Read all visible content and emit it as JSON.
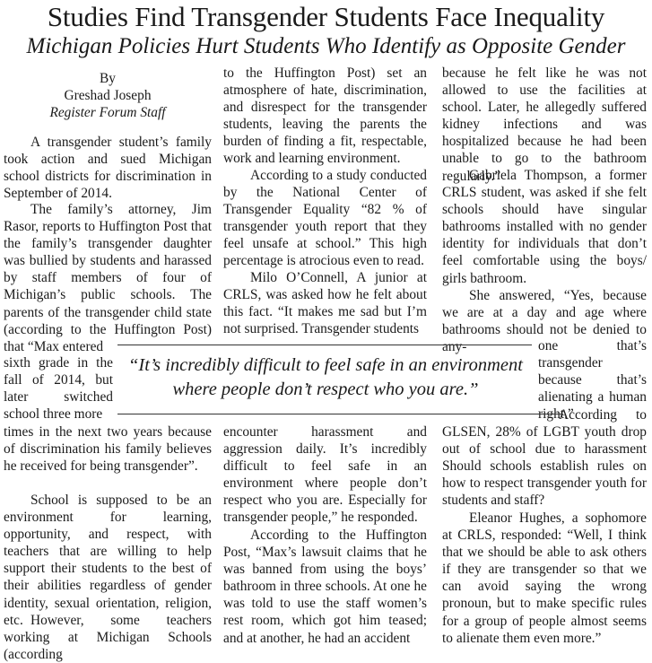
{
  "headline": "Studies Find Transgender Students Face Inequality",
  "subheadline": "Michigan Policies Hurt Students Who Identify as Opposite Gender",
  "byline": {
    "by": "By",
    "author": "Greshad Joseph",
    "staff": "Register Forum Staff"
  },
  "col1": {
    "p1": "A transgender student’s family took action and sued Michigan school districts for discrimination in September of 2014.",
    "p2": "The family’s attorney, Jim Rasor, reports to Huffington Post that the family’s transgender daughter was bullied by students and harassed by staff members of four of Michigan’s public schools. The parents of the transgender child state (according to the Huffington Post) that “Max entered",
    "p2b": "sixth grade in the fall of 2014, but later switched school three more",
    "p2c": "times in the next two years because of discrimination his family believes he received for being transgender”.",
    "p3": "School is supposed to be an environment for learning, opportunity, and respect, with teachers that are willing to help support their students to the best of their abilities regardless of gender identity, sexual orientation, religion, etc.",
    "p4": "However, some teachers working at Michigan Schools (according"
  },
  "col2": {
    "p1": "to the Huffington Post) set an atmosphere of hate, discrimination, and disrespect for the transgender students, leaving the parents the burden of finding a fit, respectable, work and learning environment.",
    "p2": "According to a study conducted by the National Center of Transgender Equality “82 % of transgender youth report that they feel unsafe at school.” This high percentage is atrocious even to read.",
    "p3": "Milo O’Connell, A junior at CRLS, was asked how he felt about this fact. “It makes me sad but I’m not surprised. Transgender students",
    "p4": "encounter harassment and aggression daily. It’s incredibly difficult to feel safe in an environment where people don’t respect who you are. Especially for transgender people,” he responded.",
    "p5": "According to the Huffington Post, “Max’s lawsuit claims that he was banned from using the boys’ bathroom in three schools. At one he was told to use the staff women’s rest room, which got him teased; and at another, he had an accident"
  },
  "col3": {
    "p1": "because he felt like he was not allowed to use the facilities at school. Later, he allegedly suffered kidney infections and was hospitalized because he had been unable to go to the bathroom regularly.”",
    "p2": "Gabriela Thompson, a former CRLS student, was asked if she felt schools should have singular bathrooms installed with no gender identity for individuals that don’t feel comfortable using the boys/ girls bathroom.",
    "p3": "She answered, “Yes, because we are at a day and age where bathrooms should not be denied to any-",
    "p3b": "one that’s transgender because that’s alienating a human right.”",
    "p4": "According to GLSEN, 28% of LGBT youth drop out of school due to harassment Should schools establish rules on how to respect transgender youth for students and staff?",
    "p5": "Eleanor Hughes, a sophomore at CRLS, responded: “Well, I think that we should be able to ask others if they are transgender so that we can avoid saying the wrong pronoun, but to make specific rules for a group of people almost seems to alienate them even more.”"
  },
  "pull_quote": {
    "line1": "“It’s incredibly difficult to feel safe in an environment",
    "line2": "where people don’t respect who you are.”"
  }
}
